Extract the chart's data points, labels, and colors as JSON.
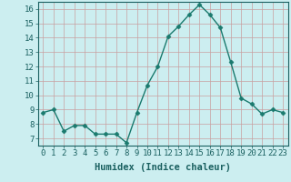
{
  "x": [
    0,
    1,
    2,
    3,
    4,
    5,
    6,
    7,
    8,
    9,
    10,
    11,
    12,
    13,
    14,
    15,
    16,
    17,
    18,
    19,
    20,
    21,
    22,
    23
  ],
  "y": [
    8.8,
    9.0,
    7.5,
    7.9,
    7.9,
    7.3,
    7.3,
    7.3,
    6.7,
    8.8,
    10.7,
    12.0,
    14.1,
    14.8,
    15.6,
    16.3,
    15.6,
    14.7,
    12.3,
    9.8,
    9.4,
    8.7,
    9.0,
    8.8
  ],
  "line_color": "#1a7a6e",
  "marker": "D",
  "markersize": 2.5,
  "linewidth": 1.0,
  "xlabel": "Humidex (Indice chaleur)",
  "xlabel_fontsize": 7.5,
  "xlim": [
    -0.5,
    23.5
  ],
  "ylim": [
    6.5,
    16.5
  ],
  "yticks": [
    7,
    8,
    9,
    10,
    11,
    12,
    13,
    14,
    15,
    16
  ],
  "xticks": [
    0,
    1,
    2,
    3,
    4,
    5,
    6,
    7,
    8,
    9,
    10,
    11,
    12,
    13,
    14,
    15,
    16,
    17,
    18,
    19,
    20,
    21,
    22,
    23
  ],
  "xtick_labels": [
    "0",
    "1",
    "2",
    "3",
    "4",
    "5",
    "6",
    "7",
    "8",
    "9",
    "10",
    "11",
    "12",
    "13",
    "14",
    "15",
    "16",
    "17",
    "18",
    "19",
    "20",
    "21",
    "22",
    "23"
  ],
  "bg_color": "#cceef0",
  "grid_color": "#c8a0a0",
  "tick_fontsize": 6.5,
  "text_color": "#1a6060"
}
